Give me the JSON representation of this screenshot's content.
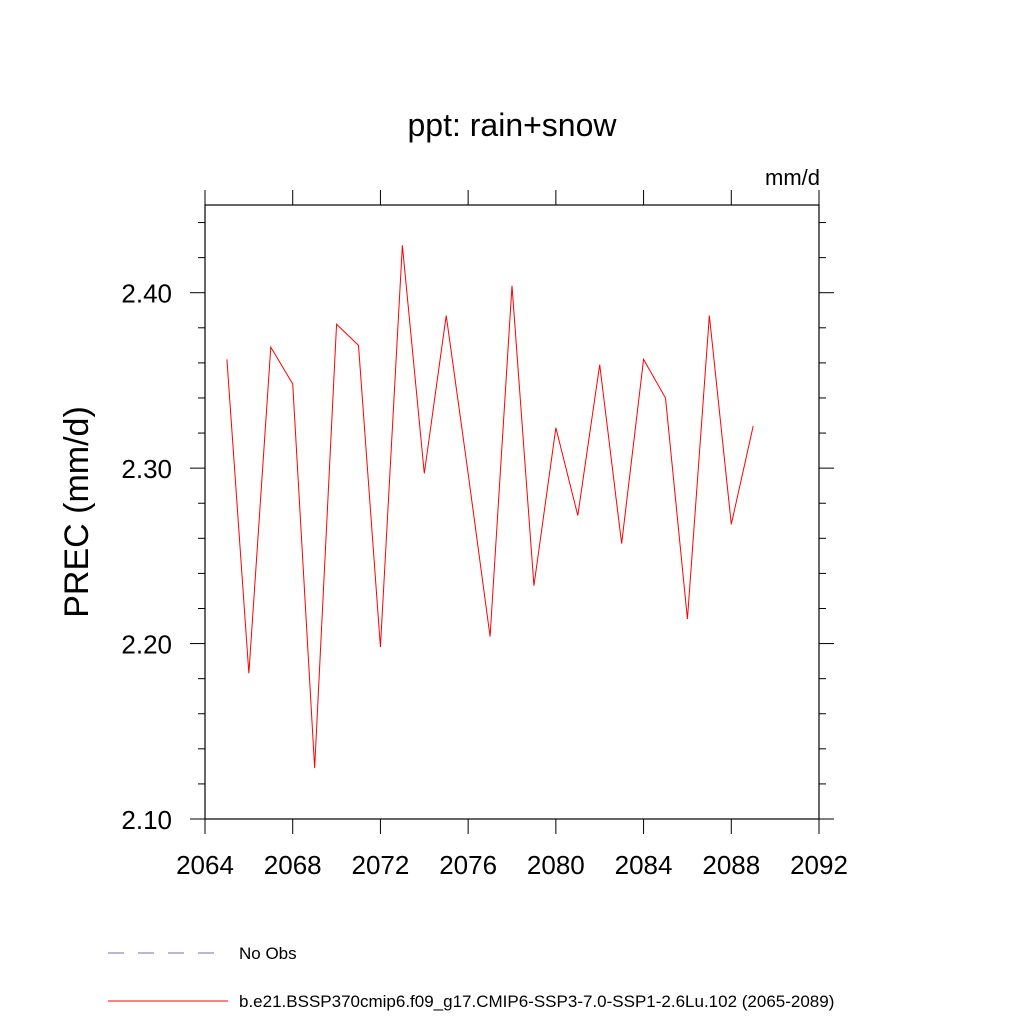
{
  "chart_data": {
    "type": "line",
    "title": "ppt: rain+snow",
    "units": "mm/d",
    "xlabel": "",
    "ylabel": "PREC  (mm/d)",
    "xlim": [
      2064,
      2092
    ],
    "ylim": [
      2.1,
      2.45
    ],
    "x_ticks": [
      2064,
      2068,
      2072,
      2076,
      2080,
      2084,
      2088,
      2092
    ],
    "x_tick_labels": [
      "2064",
      "2068",
      "2072",
      "2076",
      "2080",
      "2084",
      "2088",
      "2092"
    ],
    "y_ticks": [
      2.1,
      2.2,
      2.3,
      2.4
    ],
    "y_tick_labels": [
      "2.10",
      "2.20",
      "2.30",
      "2.40"
    ],
    "grid": false,
    "legend_position": "bottom",
    "series": [
      {
        "name": "b.e21.BSSP370cmip6.f09_g17.CMIP6-SSP3-7.0-SSP1-2.6Lu.102 (2065-2089)",
        "color": "#ff0000",
        "style": "solid",
        "x": [
          2065,
          2066,
          2067,
          2068,
          2069,
          2070,
          2071,
          2072,
          2073,
          2074,
          2075,
          2076,
          2077,
          2078,
          2079,
          2080,
          2081,
          2082,
          2083,
          2084,
          2085,
          2086,
          2087,
          2088,
          2089
        ],
        "values": [
          2.362,
          2.183,
          2.369,
          2.348,
          2.129,
          2.382,
          2.37,
          2.198,
          2.427,
          2.297,
          2.387,
          2.297,
          2.204,
          2.404,
          2.233,
          2.323,
          2.273,
          2.359,
          2.257,
          2.362,
          2.34,
          2.214,
          2.387,
          2.268,
          2.324
        ]
      }
    ],
    "legend": [
      {
        "label": "No Obs",
        "color": "#7b68b8",
        "style": "dashed"
      },
      {
        "label": "b.e21.BSSP370cmip6.f09_g17.CMIP6-SSP3-7.0-SSP1-2.6Lu.102 (2065-2089)",
        "color": "#ff0000",
        "style": "solid"
      }
    ]
  }
}
